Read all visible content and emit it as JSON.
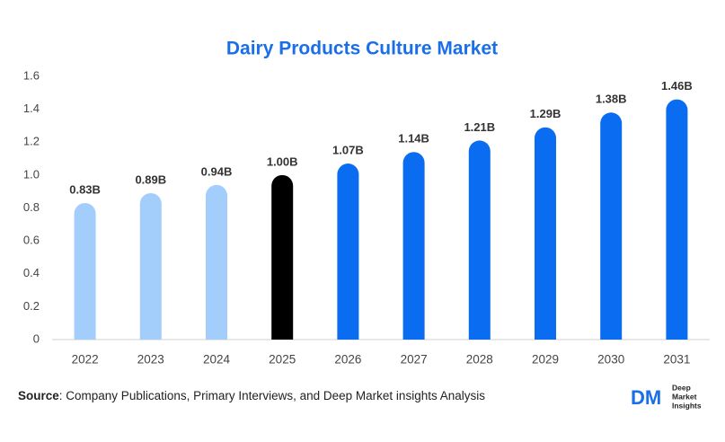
{
  "chart_data": {
    "type": "bar",
    "title": "Dairy Products Culture Market",
    "categories": [
      "2022",
      "2023",
      "2024",
      "2025",
      "2026",
      "2027",
      "2028",
      "2029",
      "2030",
      "2031"
    ],
    "values": [
      0.83,
      0.89,
      0.94,
      1.0,
      1.07,
      1.14,
      1.21,
      1.29,
      1.38,
      1.46
    ],
    "value_labels": [
      "0.83B",
      "0.89B",
      "0.94B",
      "1.00B",
      "1.07B",
      "1.14B",
      "1.21B",
      "1.29B",
      "1.38B",
      "1.46B"
    ],
    "colors": [
      "#a3cdfb",
      "#a3cdfb",
      "#a3cdfb",
      "#000000",
      "#0a6cf0",
      "#0a6cf0",
      "#0a6cf0",
      "#0a6cf0",
      "#0a6cf0",
      "#0a6cf0"
    ],
    "ylim": [
      0,
      1.6
    ],
    "yticks": [
      0,
      0.2,
      0.4,
      0.6,
      0.8,
      {
        "value": 1,
        "label": "1.0"
      },
      1.2,
      1.4,
      1.6
    ],
    "grid": false
  },
  "source": {
    "label": "Source",
    "text": ": Company Publications, Primary Interviews, and Deep Market insights Analysis"
  },
  "logo": {
    "mark": "DM",
    "line1": "Deep",
    "line2": "Market",
    "line3": "Insights"
  }
}
